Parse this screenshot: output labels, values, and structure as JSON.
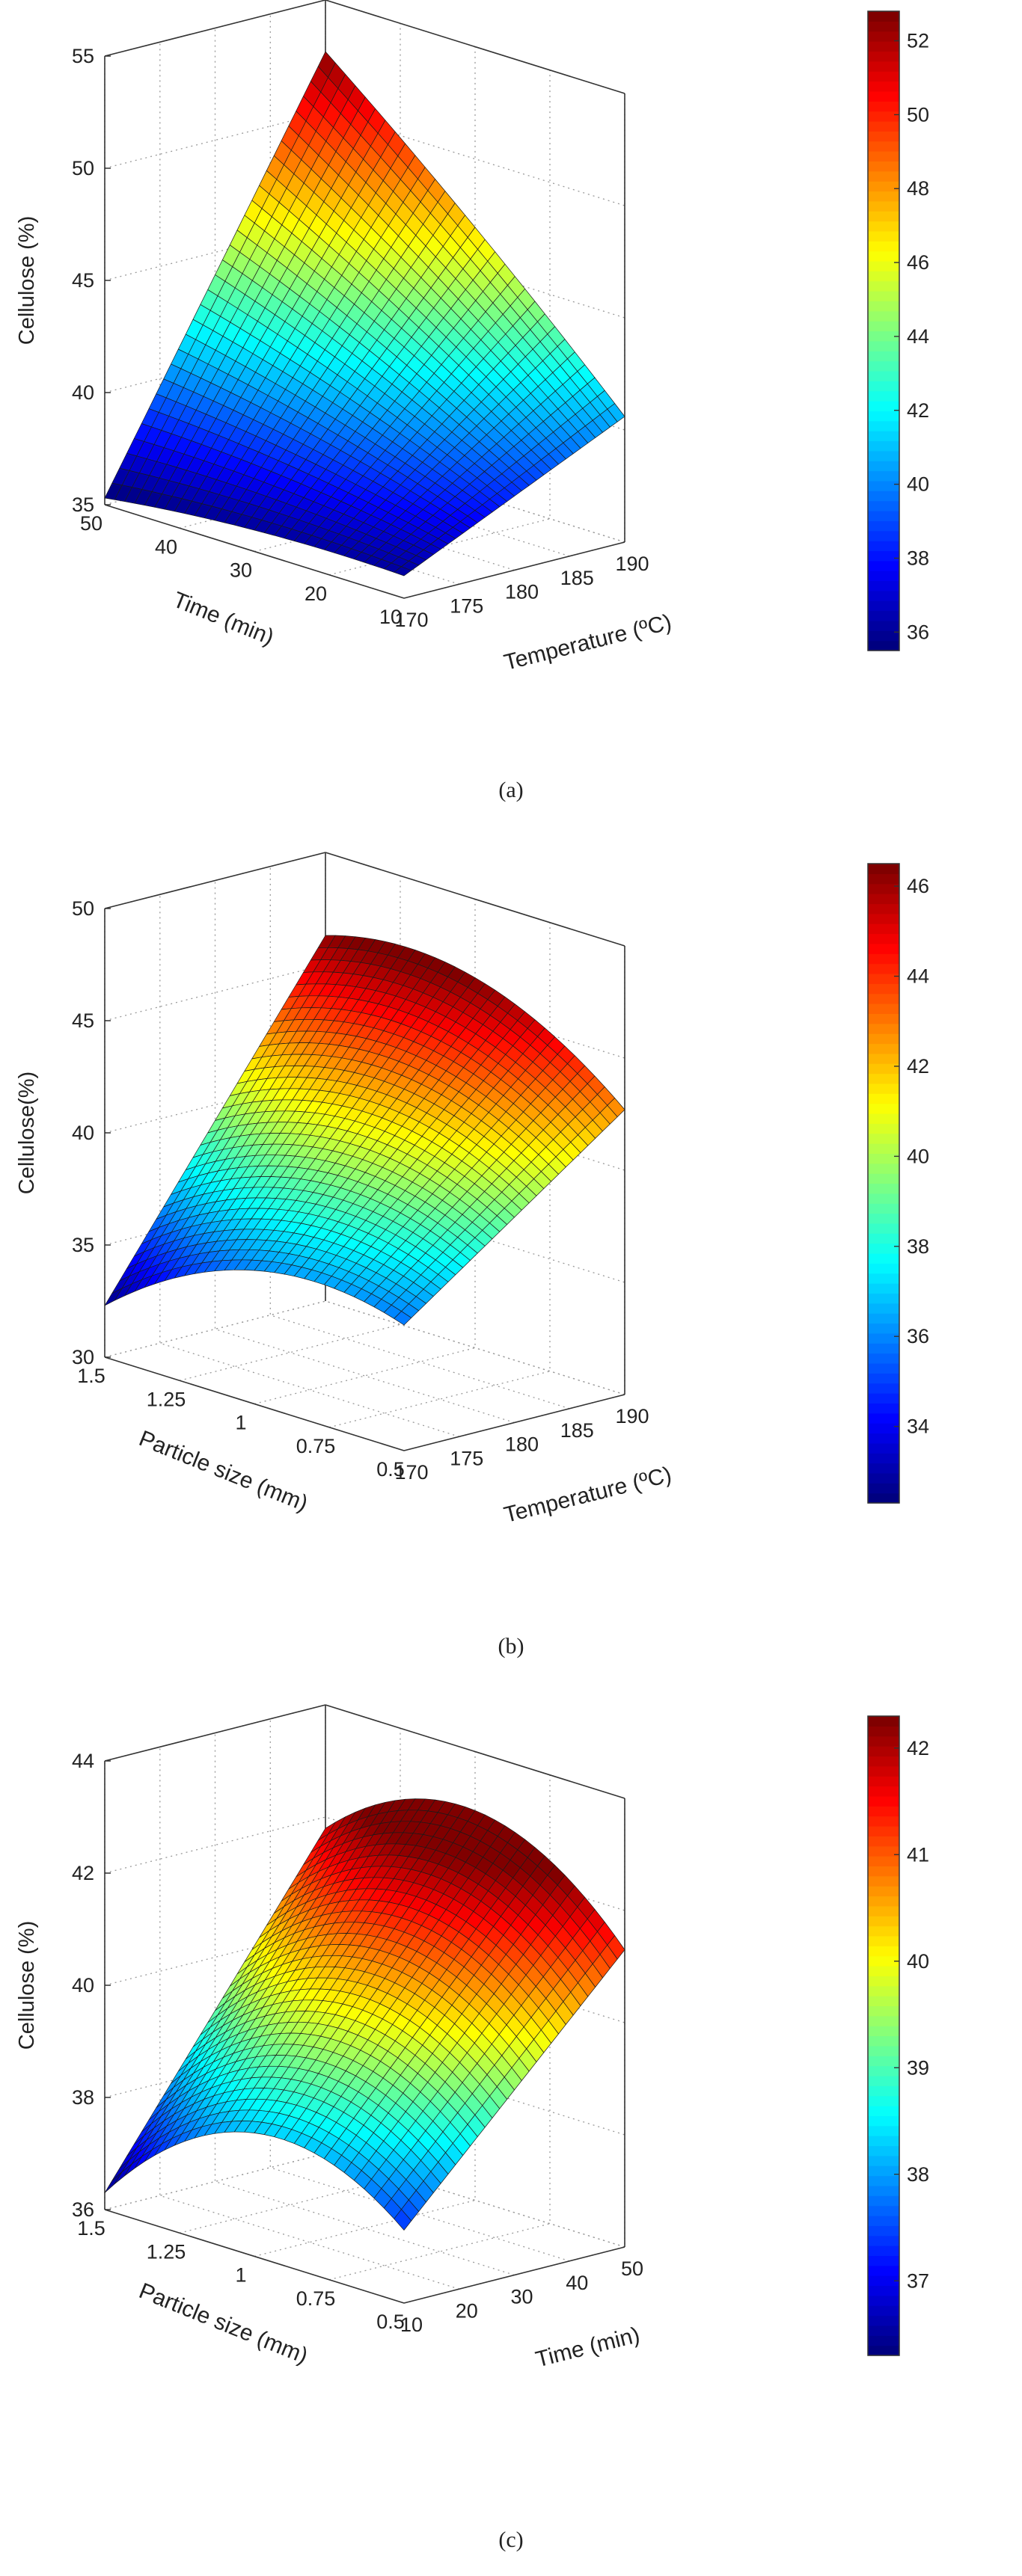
{
  "chart_data": [
    {
      "type": "surface3d",
      "panel_label": "(a)",
      "zlabel": "Cellulose (%)",
      "xlabel": "Temperature (ºC)",
      "ylabel": "Time (min)",
      "x_ticks": [
        "170",
        "175",
        "180",
        "185",
        "190"
      ],
      "y_ticks": [
        "10",
        "20",
        "30",
        "40",
        "50"
      ],
      "z_ticks": [
        "35",
        "40",
        "45",
        "50",
        "55"
      ],
      "xlim": [
        170,
        190
      ],
      "ylim": [
        10,
        50
      ],
      "zlim": [
        35,
        55
      ],
      "colorbar_ticks": [
        "36",
        "38",
        "40",
        "42",
        "44",
        "46",
        "48",
        "50",
        "52"
      ],
      "colorbar_range": [
        35.5,
        52.8
      ],
      "corner_values": {
        "x170_y10": 36.0,
        "x170_y50": 35.3,
        "x190_y10": 40.6,
        "x190_y50": 52.7
      },
      "curvature": 0.3,
      "grid": true
    },
    {
      "type": "surface3d",
      "panel_label": "(b)",
      "zlabel": "Cellulose(%)",
      "xlabel": "Temperature (ºC)",
      "ylabel": "Particle size (mm)",
      "x_ticks": [
        "170",
        "175",
        "180",
        "185",
        "190"
      ],
      "y_ticks": [
        "0.5",
        "0.75",
        "1",
        "1.25",
        "1.5"
      ],
      "z_ticks": [
        "30",
        "35",
        "40",
        "45",
        "50"
      ],
      "xlim": [
        170,
        190
      ],
      "ylim": [
        0.5,
        1.5
      ],
      "zlim": [
        30,
        50
      ],
      "colorbar_ticks": [
        "34",
        "36",
        "38",
        "40",
        "42",
        "44",
        "46"
      ],
      "colorbar_range": [
        32.3,
        46.5
      ],
      "corner_values": {
        "x170_y0.5": 35.6,
        "x170_y1.5": 32.3,
        "x190_y0.5": 42.7,
        "x190_y1.5": 46.3
      },
      "curvature": 2.0,
      "grid": true
    },
    {
      "type": "surface3d",
      "panel_label": "(c)",
      "zlabel": "Cellulose (%)",
      "xlabel": "Time (min)",
      "ylabel": "Particle size (mm)",
      "x_ticks": [
        "10",
        "20",
        "30",
        "40",
        "50"
      ],
      "y_ticks": [
        "0.5",
        "0.75",
        "1",
        "1.25",
        "1.5"
      ],
      "z_ticks": [
        "36",
        "38",
        "40",
        "42",
        "44"
      ],
      "xlim": [
        10,
        50
      ],
      "ylim": [
        0.5,
        1.5
      ],
      "zlim": [
        36,
        44
      ],
      "colorbar_ticks": [
        "37",
        "38",
        "39",
        "40",
        "41",
        "42"
      ],
      "colorbar_range": [
        36.3,
        42.3
      ],
      "corner_values": {
        "x10_y0.5": 37.3,
        "x10_y1.5": 36.3,
        "x50_y0.5": 41.3,
        "x50_y1.5": 41.8
      },
      "curvature": 1.4,
      "grid": true
    }
  ]
}
